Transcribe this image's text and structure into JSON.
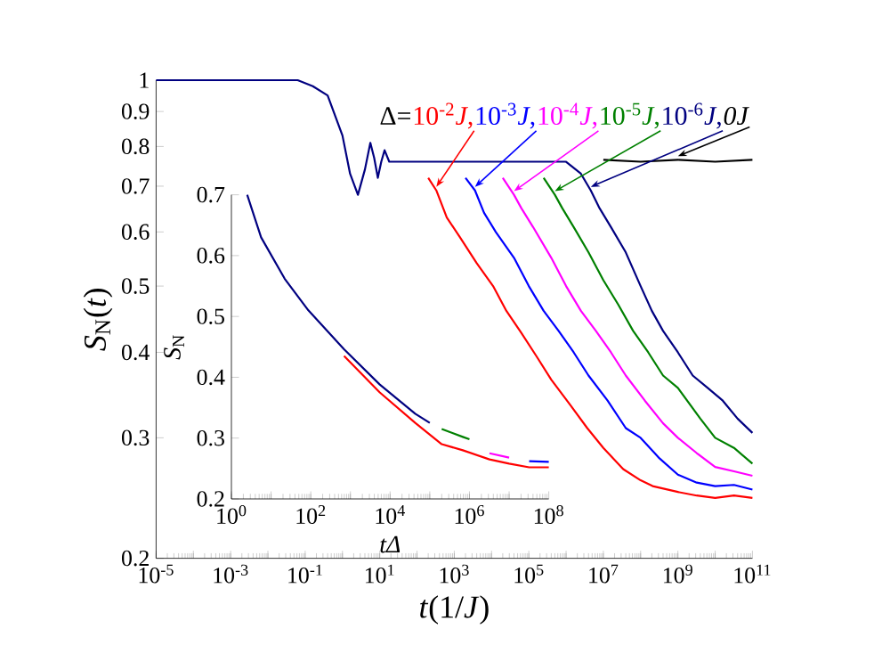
{
  "chart_data": [
    {
      "type": "line",
      "log": "xy",
      "xlabel": "*t*(1/*J*)",
      "ylabel": "*S*$_{N}$(*t*)",
      "xlim": [
        1e-05,
        100000000000.0
      ],
      "ylim": [
        0.2,
        1
      ],
      "xticks": [
        {
          "value": 1e-05,
          "label": "10$^{-5}$"
        },
        {
          "value": 0.0001,
          "label": null
        },
        {
          "value": 0.001,
          "label": "10$^{-3}$"
        },
        {
          "value": 0.01,
          "label": null
        },
        {
          "value": 0.1,
          "label": "10$^{-1}$"
        },
        {
          "value": 1,
          "label": null
        },
        {
          "value": 10,
          "label": "10$^{1}$"
        },
        {
          "value": 100.0,
          "label": null
        },
        {
          "value": 1000.0,
          "label": "10$^{3}$"
        },
        {
          "value": 10000.0,
          "label": null
        },
        {
          "value": 100000.0,
          "label": "10$^{5}$"
        },
        {
          "value": 1000000.0,
          "label": null
        },
        {
          "value": 10000000.0,
          "label": "10$^{7}$"
        },
        {
          "value": 100000000.0,
          "label": null
        },
        {
          "value": 1000000000.0,
          "label": "10$^{9}$"
        },
        {
          "value": 10000000000.0,
          "label": null
        },
        {
          "value": 100000000000.0,
          "label": "10$^{11}$"
        }
      ],
      "yticks": [
        0.2,
        0.3,
        0.4,
        0.5,
        0.6,
        0.7,
        0.8,
        0.9,
        1
      ],
      "annotations": [
        "Δ="
      ],
      "series": [
        {
          "name": "10$^{-2}$*J*,",
          "color": "#ff0000",
          "x": [
            200.0,
            330.0,
            630.0,
            1400.0,
            4000.0,
            11000.0,
            25000.0,
            63000.0,
            160000.0,
            400000.0,
            1300000.0,
            3700000.0,
            10000000.0,
            34000000.0,
            100000000.0,
            210000000.0,
            1000000000.0,
            3200000000.0,
            10000000000.0,
            32000000000.0,
            100000000000.0
          ],
          "values": [
            0.72,
            0.69,
            0.63,
            0.59,
            0.54,
            0.5,
            0.46,
            0.427,
            0.395,
            0.365,
            0.335,
            0.31,
            0.29,
            0.27,
            0.26,
            0.255,
            0.25,
            0.247,
            0.245,
            0.247,
            0.245
          ]
        },
        {
          "name": "10$^{-3}$*J*,",
          "color": "#0000ff",
          "x": [
            2000.0,
            3600.0,
            6300.0,
            13000.0,
            40000.0,
            100000.0,
            250000.0,
            630000.0,
            1600000.0,
            4000000.0,
            13000000.0,
            40000000.0,
            100000000.0,
            320000000.0,
            1000000000.0,
            3200000000.0,
            10000000000.0,
            32000000000.0,
            100000000000.0
          ],
          "values": [
            0.72,
            0.69,
            0.64,
            0.6,
            0.55,
            0.5,
            0.46,
            0.43,
            0.4,
            0.37,
            0.34,
            0.31,
            0.3,
            0.28,
            0.265,
            0.258,
            0.255,
            0.256,
            0.252
          ]
        },
        {
          "name": "10$^{-4}$*J*,",
          "color": "#ff00ff",
          "x": [
            20000.0,
            40000.0,
            63000.0,
            130000.0,
            400000.0,
            1000000.0,
            2500000.0,
            6300000.0,
            16000000.0,
            40000000.0,
            130000000.0,
            400000000.0,
            1000000000.0,
            3200000000.0,
            10000000000.0,
            32000000000.0,
            100000000000.0
          ],
          "values": [
            0.72,
            0.68,
            0.65,
            0.61,
            0.55,
            0.5,
            0.46,
            0.43,
            0.4,
            0.37,
            0.34,
            0.315,
            0.3,
            0.285,
            0.272,
            0.268,
            0.264
          ]
        },
        {
          "name": "10$^{-5}$*J*,",
          "color": "#008000",
          "x": [
            250000.0,
            500000.0,
            790000.0,
            1600000.0,
            4000000.0,
            10000000.0,
            25000000.0,
            63000000.0,
            160000000.0,
            400000000.0,
            1000000000.0,
            4000000000.0,
            10000000000.0,
            32000000000.0,
            100000000000.0
          ],
          "values": [
            0.72,
            0.68,
            0.65,
            0.61,
            0.56,
            0.51,
            0.47,
            0.43,
            0.4,
            0.37,
            0.355,
            0.32,
            0.3,
            0.29,
            0.275
          ]
        },
        {
          "name": "10$^{-6}$*J*,",
          "color": "#000080",
          "x": [
            1e-05,
            0.01,
            0.063,
            0.16,
            0.4,
            1,
            1.6,
            2.6,
            4,
            5.6,
            7.1,
            8.9,
            11,
            13.5,
            18,
            32,
            320.0,
            1000000.0,
            2500000.0,
            4600000.0,
            7900000.0,
            16000000.0,
            40000000.0,
            100000000.0,
            200000000.0,
            400000000.0,
            1000000000.0,
            2500000000.0,
            6300000000.0,
            16000000000.0,
            40000000000.0,
            100000000000.0
          ],
          "values": [
            1,
            1,
            1,
            0.98,
            0.95,
            0.83,
            0.73,
            0.68,
            0.74,
            0.81,
            0.77,
            0.72,
            0.76,
            0.79,
            0.76,
            0.76,
            0.76,
            0.76,
            0.73,
            0.69,
            0.65,
            0.61,
            0.56,
            0.5,
            0.46,
            0.43,
            0.4,
            0.37,
            0.355,
            0.34,
            0.32,
            0.305
          ]
        },
        {
          "name": "*0J*",
          "color": "#000000",
          "x": [
            10000000.0,
            100000000.0,
            1000000000.0,
            10000000000.0,
            100000000000.0
          ],
          "values": [
            0.765,
            0.76,
            0.765,
            0.76,
            0.765
          ]
        }
      ]
    },
    {
      "type": "line",
      "log": "x",
      "xlabel": "*tΔ*",
      "ylabel": "*S*$_{N}$",
      "xlim": [
        1,
        100000000.0
      ],
      "ylim": [
        0.2,
        0.7
      ],
      "xticks": [
        {
          "value": 1,
          "label": "10$^{0}$"
        },
        {
          "value": 10,
          "label": null
        },
        {
          "value": 100.0,
          "label": "10$^{2}$"
        },
        {
          "value": 1000.0,
          "label": null
        },
        {
          "value": 10000.0,
          "label": "10$^{4}$"
        },
        {
          "value": 100000.0,
          "label": null
        },
        {
          "value": 1000000.0,
          "label": "10$^{6}$"
        },
        {
          "value": 10000000.0,
          "label": null
        },
        {
          "value": 100000000.0,
          "label": "10$^{8}$"
        }
      ],
      "yticks": [
        0.2,
        0.3,
        0.4,
        0.5,
        0.6,
        0.7
      ],
      "series": [
        {
          "color": "#ff0000",
          "x": [
            690,
            5500.0,
            43000.0,
            200000.0,
            680000.0,
            3200000.0,
            10000000.0,
            32000000.0,
            100000000.0
          ],
          "values": [
            0.435,
            0.375,
            0.325,
            0.29,
            0.28,
            0.265,
            0.258,
            0.252,
            0.252
          ]
        },
        {
          "color": "#0000ff",
          "x": [
            32000000.0,
            100000000.0
          ],
          "values": [
            0.262,
            0.261
          ]
        },
        {
          "color": "#ff00ff",
          "x": [
            3200000.0,
            10000000.0
          ],
          "values": [
            0.275,
            0.268
          ]
        },
        {
          "color": "#008000",
          "x": [
            200000.0,
            680000.0,
            1000000.0
          ],
          "values": [
            0.315,
            0.302,
            0.298
          ]
        },
        {
          "color": "#000080",
          "x": [
            2.5,
            5.6,
            22,
            87,
            690,
            5500.0,
            43000.0,
            100000.0
          ],
          "values": [
            0.7,
            0.63,
            0.562,
            0.51,
            0.446,
            0.388,
            0.34,
            0.325
          ]
        }
      ]
    }
  ]
}
